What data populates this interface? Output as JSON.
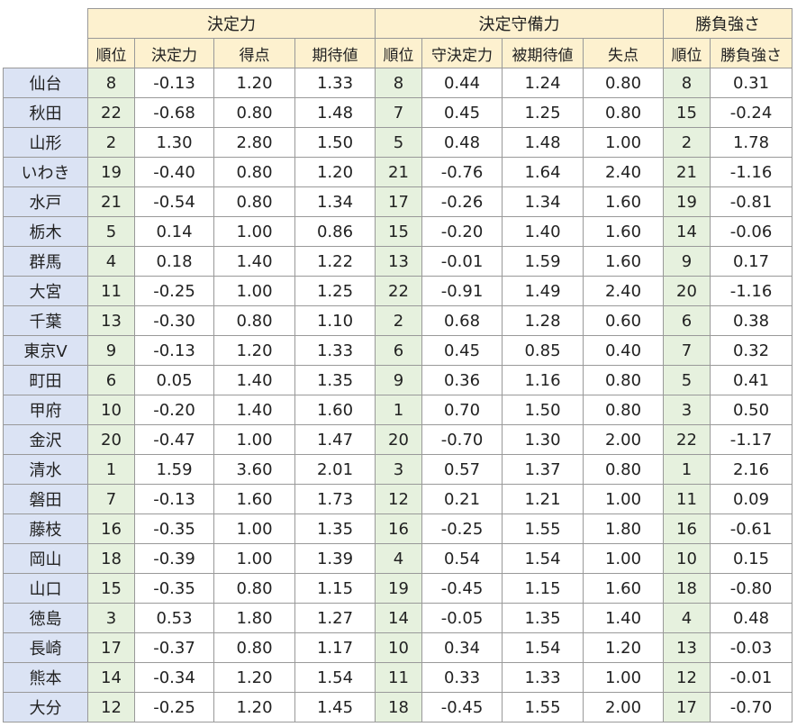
{
  "groups": [
    {
      "label": "決定力"
    },
    {
      "label": "決定守備力"
    },
    {
      "label": "勝負強さ"
    }
  ],
  "columns": [
    "順位",
    "決定力",
    "得点",
    "期待値",
    "順位",
    "守決定力",
    "被期待値",
    "失点",
    "順位",
    "勝負強さ"
  ],
  "rows": [
    {
      "team": "仙台",
      "cells": [
        "8",
        "-0.13",
        "1.20",
        "1.33",
        "8",
        "0.44",
        "1.24",
        "0.80",
        "8",
        "0.31"
      ]
    },
    {
      "team": "秋田",
      "cells": [
        "22",
        "-0.68",
        "0.80",
        "1.48",
        "7",
        "0.45",
        "1.25",
        "0.80",
        "15",
        "-0.24"
      ]
    },
    {
      "team": "山形",
      "cells": [
        "2",
        "1.30",
        "2.80",
        "1.50",
        "5",
        "0.48",
        "1.48",
        "1.00",
        "2",
        "1.78"
      ]
    },
    {
      "team": "いわき",
      "cells": [
        "19",
        "-0.40",
        "0.80",
        "1.20",
        "21",
        "-0.76",
        "1.64",
        "2.40",
        "21",
        "-1.16"
      ]
    },
    {
      "team": "水戸",
      "cells": [
        "21",
        "-0.54",
        "0.80",
        "1.34",
        "17",
        "-0.26",
        "1.34",
        "1.60",
        "19",
        "-0.81"
      ]
    },
    {
      "team": "栃木",
      "cells": [
        "5",
        "0.14",
        "1.00",
        "0.86",
        "15",
        "-0.20",
        "1.40",
        "1.60",
        "14",
        "-0.06"
      ]
    },
    {
      "team": "群馬",
      "cells": [
        "4",
        "0.18",
        "1.40",
        "1.22",
        "13",
        "-0.01",
        "1.59",
        "1.60",
        "9",
        "0.17"
      ]
    },
    {
      "team": "大宮",
      "cells": [
        "11",
        "-0.25",
        "1.00",
        "1.25",
        "22",
        "-0.91",
        "1.49",
        "2.40",
        "20",
        "-1.16"
      ]
    },
    {
      "team": "千葉",
      "cells": [
        "13",
        "-0.30",
        "0.80",
        "1.10",
        "2",
        "0.68",
        "1.28",
        "0.60",
        "6",
        "0.38"
      ]
    },
    {
      "team": "東京V",
      "cells": [
        "9",
        "-0.13",
        "1.20",
        "1.33",
        "6",
        "0.45",
        "0.85",
        "0.40",
        "7",
        "0.32"
      ]
    },
    {
      "team": "町田",
      "cells": [
        "6",
        "0.05",
        "1.40",
        "1.35",
        "9",
        "0.36",
        "1.16",
        "0.80",
        "5",
        "0.41"
      ]
    },
    {
      "team": "甲府",
      "cells": [
        "10",
        "-0.20",
        "1.40",
        "1.60",
        "1",
        "0.70",
        "1.50",
        "0.80",
        "3",
        "0.50"
      ]
    },
    {
      "team": "金沢",
      "cells": [
        "20",
        "-0.47",
        "1.00",
        "1.47",
        "20",
        "-0.70",
        "1.30",
        "2.00",
        "22",
        "-1.17"
      ]
    },
    {
      "team": "清水",
      "cells": [
        "1",
        "1.59",
        "3.60",
        "2.01",
        "3",
        "0.57",
        "1.37",
        "0.80",
        "1",
        "2.16"
      ]
    },
    {
      "team": "磐田",
      "cells": [
        "7",
        "-0.13",
        "1.60",
        "1.73",
        "12",
        "0.21",
        "1.21",
        "1.00",
        "11",
        "0.09"
      ]
    },
    {
      "team": "藤枝",
      "cells": [
        "16",
        "-0.35",
        "1.00",
        "1.35",
        "16",
        "-0.25",
        "1.55",
        "1.80",
        "16",
        "-0.61"
      ]
    },
    {
      "team": "岡山",
      "cells": [
        "18",
        "-0.39",
        "1.00",
        "1.39",
        "4",
        "0.54",
        "1.54",
        "1.00",
        "10",
        "0.15"
      ]
    },
    {
      "team": "山口",
      "cells": [
        "15",
        "-0.35",
        "0.80",
        "1.15",
        "19",
        "-0.45",
        "1.15",
        "1.60",
        "18",
        "-0.80"
      ]
    },
    {
      "team": "徳島",
      "cells": [
        "3",
        "0.53",
        "1.80",
        "1.27",
        "14",
        "-0.05",
        "1.35",
        "1.40",
        "4",
        "0.48"
      ]
    },
    {
      "team": "長崎",
      "cells": [
        "17",
        "-0.37",
        "0.80",
        "1.17",
        "10",
        "0.34",
        "1.54",
        "1.20",
        "13",
        "-0.03"
      ]
    },
    {
      "team": "熊本",
      "cells": [
        "14",
        "-0.34",
        "1.20",
        "1.54",
        "11",
        "0.33",
        "1.33",
        "1.00",
        "12",
        "-0.01"
      ]
    },
    {
      "team": "大分",
      "cells": [
        "12",
        "-0.25",
        "1.20",
        "1.45",
        "18",
        "-0.45",
        "1.55",
        "2.00",
        "17",
        "-0.70"
      ]
    }
  ],
  "colors": {
    "header_fill": "#fdf1cf",
    "team_fill": "#dbe3f4",
    "rank_fill": "#e6f1de",
    "border": "#999999"
  }
}
